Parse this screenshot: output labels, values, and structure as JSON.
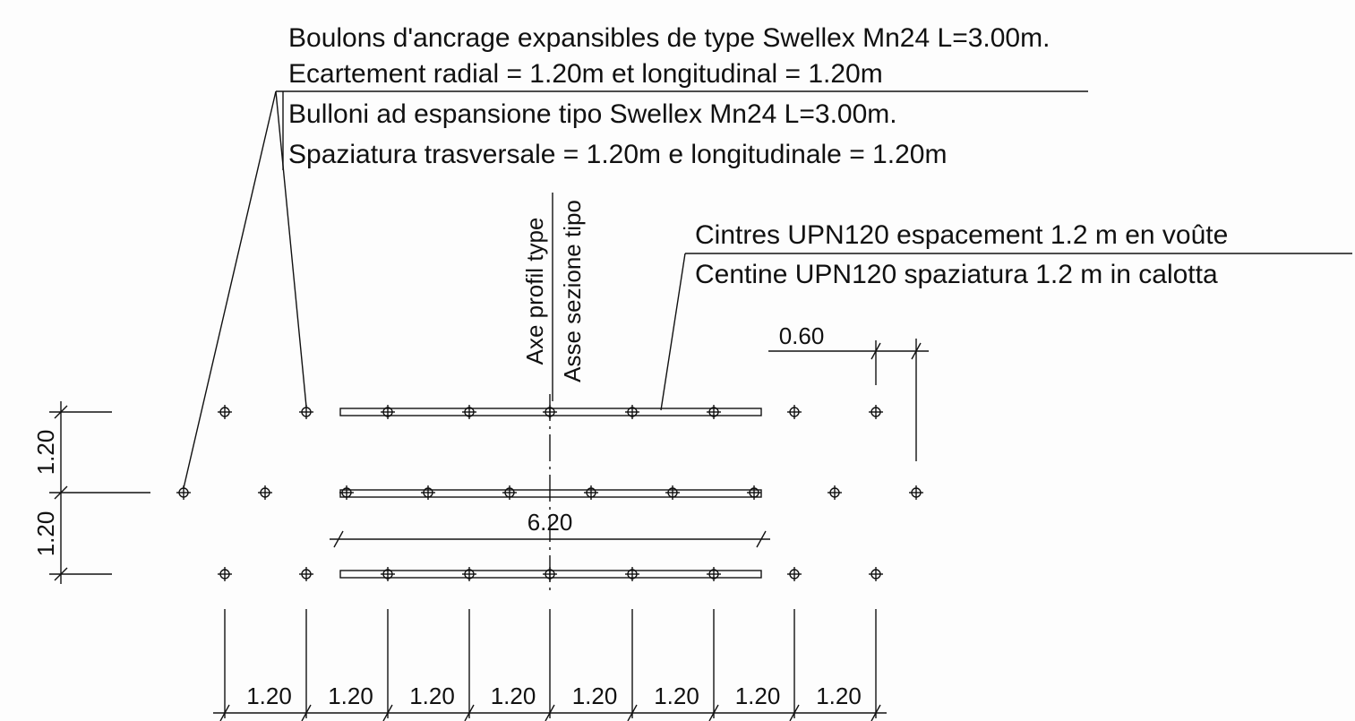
{
  "notes": {
    "bolts": [
      "Boulons d'ancrage expansibles de type Swellex Mn24 L=3.00m.",
      "Ecartement radial = 1.20m et longitudinal = 1.20m",
      "Bulloni ad espansione tipo Swellex Mn24 L=3.00m.",
      "Spaziatura trasversale = 1.20m e longitudinale = 1.20m"
    ],
    "ribs": [
      "Cintres UPN120 espacement 1.2 m en voûte",
      "Centine UPN120 spaziatura 1.2 m in calotta"
    ],
    "axis": [
      "Axe profil type",
      "Asse sezione tipo"
    ]
  },
  "dimensions": {
    "top_right": "0.60",
    "rib_length": "6.20",
    "vertical": [
      "1.20",
      "1.20"
    ],
    "horizontal": [
      "1.20",
      "1.20",
      "1.20",
      "1.20",
      "1.20",
      "1.20",
      "1.20",
      "1.20"
    ]
  }
}
